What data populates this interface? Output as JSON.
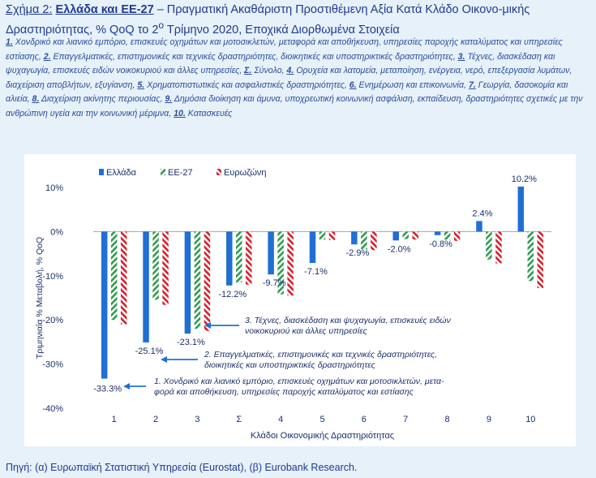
{
  "title": {
    "label": "Σχήμα 2:",
    "bold": "Ελλάδα και ΕΕ-27",
    "rest": " – Πραγματική Ακαθάριστη Προστιθέμενη Αξία Κατά Κλάδο Οικονο-μικής Δραστηριότητας, % QoQ το 2",
    "sup": "ο",
    "rest2": " Τρίμηνο 2020, Εποχικά Διορθωμένα Στοιχεία"
  },
  "notes": [
    {
      "n": "1.",
      "t": " Χονδρικό και λιανικό εμπόριο, επισκευές οχημάτων και μοτοσικλετών, μεταφορά και αποθήκευση, υπηρεσίες παροχής καταλύματος και υπηρεσίες εστίασης, "
    },
    {
      "n": "2.",
      "t": " Επαγγελματικές, επιστημονικές και τεχνικές δραστηριότητες, διοικητικές και υποστηρικτικές δραστηριότητες, "
    },
    {
      "n": "3.",
      "t": " Τέχνες, διασκέδαση και ψυχαγωγία, επισκευές ειδών νοικοκυριού και άλλες υπηρεσίες, "
    },
    {
      "n": "Σ.",
      "t": " Σύνολο, "
    },
    {
      "n": "4.",
      "t": " Ορυχεία και λατομεία, μεταποίηση, ενέργεια, νερό, επεξεργασία λυμάτων, διαχείριση αποβλήτων, εξυγίανση, "
    },
    {
      "n": "5.",
      "t": " Χρηματοπιστωτικές και ασφαλιστικές δραστηριότητες, "
    },
    {
      "n": "6.",
      "t": " Ενημέρωση και επικοινωνία, "
    },
    {
      "n": "7.",
      "t": " Γεωργία, δασοκομία και αλιεία, "
    },
    {
      "n": "8.",
      "t": " Διαχείριση ακίνητης περιουσίας, "
    },
    {
      "n": "9.",
      "t": " Δημόσια διοίκηση και άμυνα, υποχρεωτική κοινωνική ασφάλιση, εκπαίδευση, δραστηριότητες σχετικές με την ανθρώπινη υγεία και την κοινωνική μέριμνα, "
    },
    {
      "n": "10.",
      "t": " Κατασκευές"
    }
  ],
  "source": "Πηγή: (α) Ευρωπαϊκή Στατιστική Υπηρεσία (Eurostat), (β) Eurobank Research.",
  "colors": {
    "greece": "#1f6fd6",
    "eu27": "#2e9b4e",
    "eurozone": "#d61f2b"
  },
  "chart_data": {
    "type": "bar",
    "categories": [
      "1",
      "2",
      "3",
      "Σ",
      "4",
      "5",
      "6",
      "7",
      "8",
      "9",
      "10"
    ],
    "series": [
      {
        "name": "Ελλάδα",
        "values": [
          -33.3,
          -25.1,
          -23.1,
          -12.2,
          -9.7,
          -7.1,
          -2.9,
          -2.0,
          -0.8,
          2.4,
          10.2
        ]
      },
      {
        "name": "ΕΕ-27",
        "values": [
          -20.0,
          -15.4,
          -22.0,
          -11.5,
          -14.2,
          -1.8,
          -4.0,
          -1.7,
          -1.8,
          -6.3,
          -11.2
        ]
      },
      {
        "name": "Ευρωζώνη",
        "values": [
          -21.0,
          -16.6,
          -22.5,
          -12.0,
          -14.5,
          -1.9,
          -4.2,
          -1.8,
          -2.1,
          -7.2,
          -12.8
        ]
      }
    ],
    "data_labels": [
      "-33.3%",
      "-25.1%",
      "-23.1%",
      "-12.2%",
      "-9.7%",
      "-7.1%",
      "-2.9%",
      "-2.0%",
      "-0.8%",
      "2.4%",
      "10.2%"
    ],
    "y_ticks": [
      10,
      0,
      -10,
      -20,
      -30,
      -40
    ],
    "y_tick_labels": [
      "10%",
      "0%",
      "-10%",
      "-20%",
      "-30%",
      "-40%"
    ],
    "ylim": [
      -40,
      10
    ],
    "xlabel": "Κλάδοι Οικονομικής Δραστηριότητας",
    "ylabel": "Τριμηνιαία % Μεταβολή, % QoQ",
    "legend": [
      "Ελλάδα",
      "ΕΕ-27",
      "Ευρωζώνη"
    ],
    "legend_position": "top-left",
    "grid": false,
    "annotations": [
      {
        "category": "3",
        "lines": [
          "3. Τέχνες, διασκέδαση και ψυχαγωγία, επισκευές ειδών",
          "νοικοκυριού και άλλες υπηρεσίες"
        ]
      },
      {
        "category": "2",
        "lines": [
          "2. Επαγγελματικές, επιστημονικές και τεχνικές δραστηριότητες,",
          "διοικητικές και υποστηρικτικές δραστηριότητες"
        ]
      },
      {
        "category": "1",
        "lines": [
          "1. Χονδρικό και λιανικό εμπόριο, επισκευές οχημάτων και μοτοσικλετών, μετα-",
          "φορά και αποθήκευση, υπηρεσίες παροχής καταλύματος και εστίασης"
        ]
      }
    ]
  }
}
